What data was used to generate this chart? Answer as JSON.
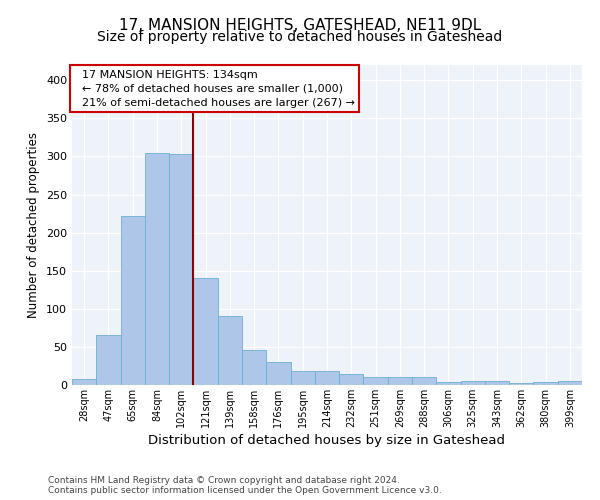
{
  "title": "17, MANSION HEIGHTS, GATESHEAD, NE11 9DL",
  "subtitle": "Size of property relative to detached houses in Gateshead",
  "xlabel": "Distribution of detached houses by size in Gateshead",
  "ylabel": "Number of detached properties",
  "categories": [
    "28sqm",
    "47sqm",
    "65sqm",
    "84sqm",
    "102sqm",
    "121sqm",
    "139sqm",
    "158sqm",
    "176sqm",
    "195sqm",
    "214sqm",
    "232sqm",
    "251sqm",
    "269sqm",
    "288sqm",
    "306sqm",
    "325sqm",
    "343sqm",
    "362sqm",
    "380sqm",
    "399sqm"
  ],
  "values": [
    8,
    65,
    222,
    305,
    303,
    140,
    90,
    46,
    30,
    19,
    19,
    14,
    11,
    10,
    10,
    4,
    5,
    5,
    3,
    4,
    5
  ],
  "bar_color": "#aec6e8",
  "bar_edge_color": "#6baed6",
  "vline_x_index": 5,
  "vline_color": "#8b0000",
  "annotation_text": "  17 MANSION HEIGHTS: 134sqm\n  ← 78% of detached houses are smaller (1,000)\n  21% of semi-detached houses are larger (267) →",
  "annotation_box_color": "#ffffff",
  "annotation_box_edge": "#cc0000",
  "ylim": [
    0,
    420
  ],
  "yticks": [
    0,
    50,
    100,
    150,
    200,
    250,
    300,
    350,
    400
  ],
  "footer1": "Contains HM Land Registry data © Crown copyright and database right 2024.",
  "footer2": "Contains public sector information licensed under the Open Government Licence v3.0.",
  "bg_color": "#eef2f9",
  "title_fontsize": 11,
  "subtitle_fontsize": 10,
  "xlabel_fontsize": 9.5,
  "ylabel_fontsize": 8.5,
  "annotation_fontsize": 8
}
